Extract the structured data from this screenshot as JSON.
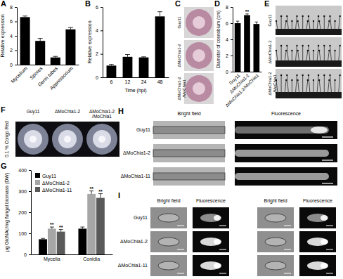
{
  "chart_data": [
    {
      "type": "bar",
      "title": "A",
      "ylabel": "Relative expression",
      "categories": [
        "Mycelium",
        "Spores",
        "Germ tubes",
        "Appressorium"
      ],
      "values": [
        6.6,
        3.3,
        1.0,
        4.9
      ],
      "errors": [
        0.15,
        0.35,
        0.15,
        0.25
      ],
      "color": "#000000",
      "ylim": [
        0,
        8
      ],
      "yticks": [
        0,
        2,
        4,
        6,
        8
      ]
    },
    {
      "type": "bar",
      "title": "B",
      "ylabel": "Relative expression",
      "xlabel": "Time (hpi)",
      "categories": [
        "6",
        "12",
        "24",
        "48"
      ],
      "values": [
        1.0,
        1.75,
        1.7,
        5.2
      ],
      "errors": [
        0.1,
        0.2,
        0.05,
        0.4
      ],
      "color": "#000000",
      "ylim": [
        0,
        6
      ],
      "yticks": [
        0,
        2,
        4,
        6
      ]
    },
    {
      "type": "bar",
      "title": "D",
      "ylabel": "Diameter of coenobium (cm)",
      "categories": [
        "Guy11",
        "ΔMoChia1-2",
        "ΔMoChia1-2/MoChia1"
      ],
      "values": [
        6.0,
        7.0,
        5.9
      ],
      "errors": [
        0.25,
        0.15,
        0.25
      ],
      "significance": [
        null,
        "**",
        null
      ],
      "color": "#000000",
      "ylim": [
        0,
        8
      ],
      "yticks": [
        0,
        2,
        4,
        6,
        8
      ]
    },
    {
      "type": "bar",
      "title": "G",
      "ylabel": "µg GlcNAc/mg fungal biomass (DW)",
      "categories": [
        "Mycelia",
        "Conidia"
      ],
      "series": [
        {
          "name": "Guy11",
          "color": "#000000",
          "values": [
            72,
            122
          ],
          "errors": [
            4,
            8
          ]
        },
        {
          "name": "ΔMoChia1-2",
          "color": "#a6a6a6",
          "values": [
            122,
            287
          ],
          "errors": [
            8,
            14
          ],
          "significance": [
            "**",
            "**"
          ]
        },
        {
          "name": "ΔMoChia1-11",
          "color": "#595959",
          "values": [
            108,
            268
          ],
          "errors": [
            10,
            20
          ],
          "significance": [
            "**",
            "**"
          ]
        }
      ],
      "ylim": [
        0,
        400
      ],
      "yticks": [
        0,
        100,
        200,
        300,
        400
      ],
      "legend": "upper left"
    }
  ],
  "image_panels": [
    {
      "letter": "C",
      "row_labels": [
        "Guy11",
        "ΔMoChia1-2",
        "ΔMoChia1-2/MoChia1"
      ]
    },
    {
      "letter": "E",
      "row_labels": [
        "Guy11",
        "ΔMoChia1-2",
        "ΔMoChia1-2/MoChia1"
      ]
    },
    {
      "letter": "F",
      "column_labels": [
        "Guy11",
        "ΔMoChia1-2",
        "ΔMoChia1-2/MoChia1"
      ],
      "row_label": "0.1 % Congo Red"
    },
    {
      "letter": "H",
      "column_labels": [
        "Bright field",
        "Fluorescence"
      ],
      "row_labels": [
        "Guy11",
        "ΔMoChia1-2",
        "ΔMoChia1-11"
      ]
    },
    {
      "letter": "I",
      "column_labels": [
        "Bright field",
        "Fluorescence",
        "Bright field",
        "Fluorescence"
      ],
      "row_labels": [
        "Guy11",
        "ΔMoChia1-2",
        "ΔMoChia1-11"
      ]
    }
  ]
}
